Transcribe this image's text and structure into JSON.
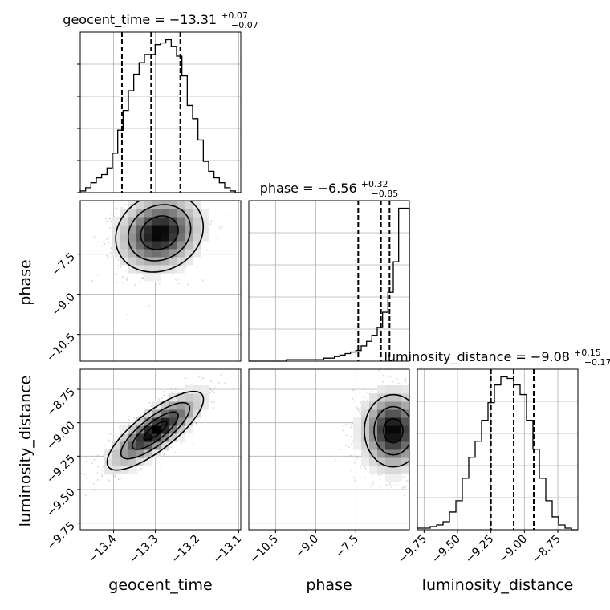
{
  "chart_data": {
    "type": "corner",
    "parameters": [
      "geocent_time",
      "phase",
      "luminosity_distance"
    ],
    "axis_labels": {
      "geocent_time": "geocent_time",
      "phase": "phase",
      "luminosity_distance": "luminosity_distance"
    },
    "ranges": {
      "geocent_time": [
        -13.48,
        -13.095
      ],
      "phase": [
        -11.5,
        -5.5
      ],
      "luminosity_distance": [
        -9.8,
        -8.6
      ]
    },
    "ticks": {
      "geocent_time": [
        -13.4,
        -13.3,
        -13.2,
        -13.1
      ],
      "phase": [
        -10.5,
        -9.0,
        -7.5
      ],
      "luminosity_distance": [
        -9.75,
        -9.5,
        -9.25,
        -9.0,
        -8.75
      ]
    },
    "tick_labels": {
      "geocent_time": [
        "−13.4",
        "−13.3",
        "−13.2",
        "−13.1"
      ],
      "phase": [
        "−10.5",
        "−9.0",
        "−7.5"
      ],
      "luminosity_distance": [
        "−9.75",
        "−9.50",
        "−9.25",
        "−9.00",
        "−8.75"
      ]
    },
    "titles": [
      {
        "name": "geocent_time",
        "median": "−13.31",
        "plus": "+0.07",
        "minus": "−0.07"
      },
      {
        "name": "phase",
        "median": "−6.56",
        "plus": "+0.32",
        "minus": "−0.85"
      },
      {
        "name": "luminosity_distance",
        "median": "−9.08",
        "plus": "+0.15",
        "minus": "−0.17"
      }
    ],
    "quantiles": {
      "geocent_time": [
        -13.38,
        -13.31,
        -13.24
      ],
      "phase": [
        -7.41,
        -6.56,
        -6.24
      ],
      "luminosity_distance": [
        -9.25,
        -9.08,
        -8.93
      ]
    },
    "histograms": {
      "geocent_time": {
        "edges_range": [
          -13.48,
          -13.095
        ],
        "counts": [
          1,
          3,
          6,
          9,
          11,
          15,
          24,
          38,
          50,
          62,
          72,
          79,
          84,
          84,
          90,
          91,
          93,
          89,
          83,
          71,
          53,
          45,
          32,
          19,
          13,
          9,
          6,
          3,
          1,
          0
        ]
      },
      "phase": {
        "edges_range": [
          -11.5,
          -5.5
        ],
        "counts": [
          0,
          0,
          0,
          0,
          0,
          0,
          0,
          1,
          1,
          1,
          1,
          1,
          1,
          1,
          2,
          2,
          3,
          4,
          5,
          6,
          7,
          10,
          13,
          17,
          22,
          32,
          45,
          65,
          100,
          100
        ]
      },
      "luminosity_distance": {
        "edges_range": [
          -9.8,
          -8.6
        ],
        "counts": [
          1,
          1,
          2,
          3,
          5,
          11,
          18,
          32,
          45,
          55,
          68,
          79,
          90,
          95,
          94,
          90,
          84,
          68,
          50,
          32,
          18,
          8,
          3,
          1,
          0
        ]
      }
    },
    "joint": {
      "phase_vs_geocent_time": {
        "mean": [
          -13.29,
          -6.7
        ],
        "std": [
          0.05,
          0.7
        ],
        "corr": 0.15,
        "contour_sigmas": [
          0.9,
          1.5,
          2.1
        ]
      },
      "luminosity_distance_vs_geocent_time": {
        "mean": [
          -13.3,
          -9.06
        ],
        "std": [
          0.055,
          0.14
        ],
        "corr": 0.8,
        "contour_sigmas": [
          0.5,
          1.0,
          1.5,
          2.1
        ]
      },
      "luminosity_distance_vs_phase": {
        "mean": [
          -6.1,
          -9.06
        ],
        "std": [
          0.6,
          0.15
        ],
        "corr": 0.0,
        "contour_sigmas": [
          0.6,
          1.2,
          1.8
        ]
      }
    },
    "grid": true
  }
}
